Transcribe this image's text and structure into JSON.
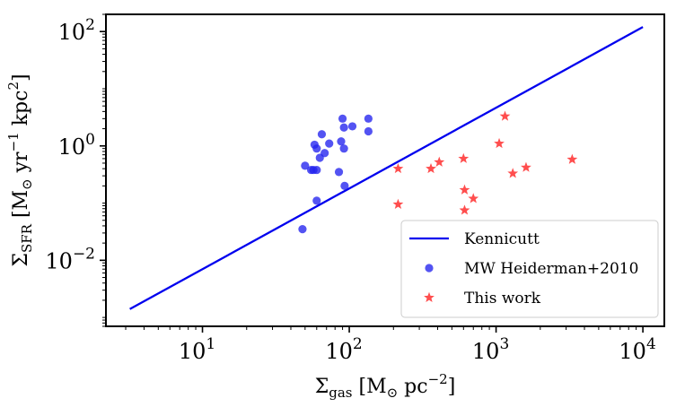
{
  "chart_data": {
    "type": "scatter",
    "xscale": "log",
    "yscale": "log",
    "xlim": [
      2.2,
      14000
    ],
    "ylim": [
      0.0007,
      200
    ],
    "xticks": [
      10,
      100,
      1000,
      10000
    ],
    "xtick_labels": [
      {
        "base": "10",
        "exp": "1"
      },
      {
        "base": "10",
        "exp": "2"
      },
      {
        "base": "10",
        "exp": "3"
      },
      {
        "base": "10",
        "exp": "4"
      }
    ],
    "yticks": [
      0.01,
      1,
      100
    ],
    "ytick_labels": [
      {
        "base": "10",
        "exp": "−2"
      },
      {
        "base": "10",
        "exp": "0"
      },
      {
        "base": "10",
        "exp": "2"
      }
    ],
    "xlabel": {
      "sym": "Σ",
      "sub": "gas",
      "a": " [M",
      "sun": "⊙",
      "b": " pc",
      "sup": "−2",
      "c": "]"
    },
    "ylabel": {
      "sym": "Σ",
      "sub": "SFR",
      "a": " [M",
      "sun": "⊙",
      "b": " yr",
      "sup1": "−1",
      "c": " kpc",
      "sup2": "2",
      "d": "]"
    },
    "series": [
      {
        "name": "Kennicutt",
        "kind": "line",
        "color": "#0000ee",
        "x": [
          3.2,
          10000
        ],
        "y": [
          0.0014,
          120
        ]
      },
      {
        "name": "MW Heiderman+2010",
        "kind": "scatter",
        "marker": "circle",
        "color": "#2222ee",
        "x": [
          48,
          50,
          55,
          57,
          60,
          58,
          60,
          63,
          65,
          68,
          73,
          85,
          88,
          92,
          90,
          92,
          93,
          105,
          135,
          135,
          60
        ],
        "y": [
          0.035,
          0.45,
          0.38,
          0.38,
          0.11,
          1.05,
          0.9,
          0.62,
          1.6,
          0.75,
          1.1,
          0.35,
          1.2,
          2.1,
          3.0,
          0.9,
          0.2,
          2.2,
          3.0,
          1.8,
          0.38
        ]
      },
      {
        "name": "This work",
        "kind": "scatter",
        "marker": "star",
        "color": "#ff2222",
        "x": [
          215,
          215,
          360,
          410,
          600,
          610,
          610,
          700,
          1050,
          1150,
          1300,
          1600,
          3300
        ],
        "y": [
          0.4,
          0.095,
          0.4,
          0.52,
          0.6,
          0.17,
          0.075,
          0.12,
          1.1,
          3.3,
          0.33,
          0.42,
          0.58
        ]
      }
    ],
    "legend": {
      "location": "lower-right"
    }
  }
}
